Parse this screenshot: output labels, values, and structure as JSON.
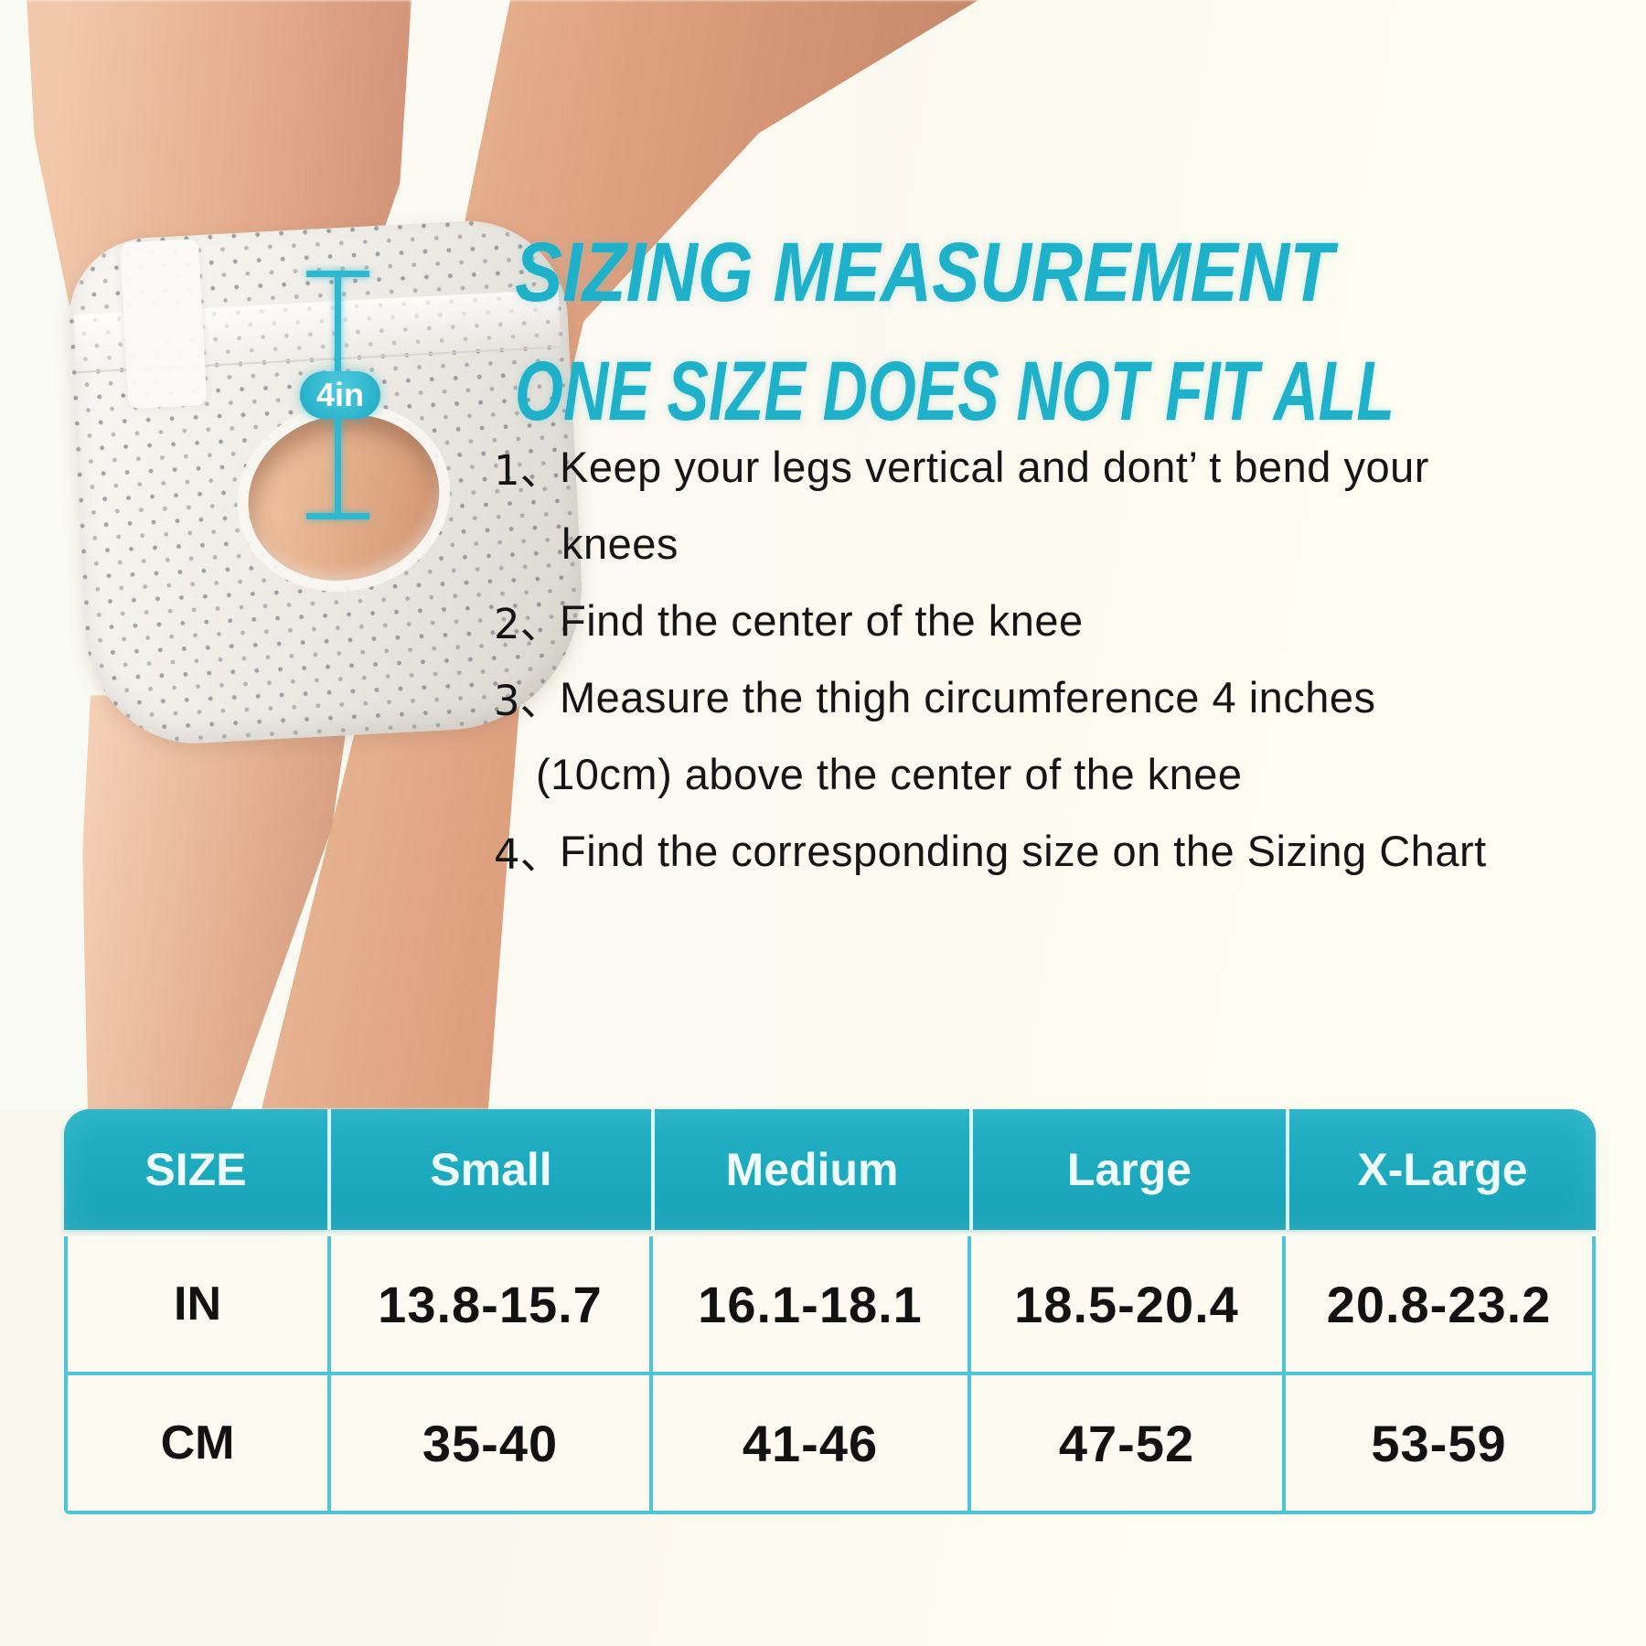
{
  "title": {
    "line1": "SIZING MEASUREMENT",
    "line2": "ONE SIZE DOES NOT FIT ALL"
  },
  "annotation": {
    "badge": "4in"
  },
  "instructions": [
    {
      "num": "1、",
      "lines": [
        "Keep your legs vertical and dont’ t bend your",
        "knees"
      ]
    },
    {
      "num": "2、",
      "lines": [
        "Find the center of the knee"
      ]
    },
    {
      "num": "3、",
      "lines": [
        "Measure the thigh circumference 4 inches",
        "(10cm) above the  center of the knee"
      ]
    },
    {
      "num": "4、",
      "lines": [
        "Find the corresponding size on the Sizing Chart"
      ]
    }
  ],
  "size_table": {
    "headers": [
      "SIZE",
      "Small",
      "Medium",
      "Large",
      "X-Large"
    ],
    "rows": [
      {
        "label": "IN",
        "values": [
          "13.8-15.7",
          "16.1-18.1",
          "18.5-20.4",
          "20.8-23.2"
        ]
      },
      {
        "label": "CM",
        "values": [
          "35-40",
          "41-46",
          "47-52",
          "53-59"
        ]
      }
    ]
  },
  "colors": {
    "accent_cyan": "#1fb1c9",
    "annotation_cyan": "#2fb9d0",
    "table_header_teal": "#1aa8bd",
    "table_border_cyan": "#4cc5d8",
    "background_cream": "#fbf8ee"
  }
}
